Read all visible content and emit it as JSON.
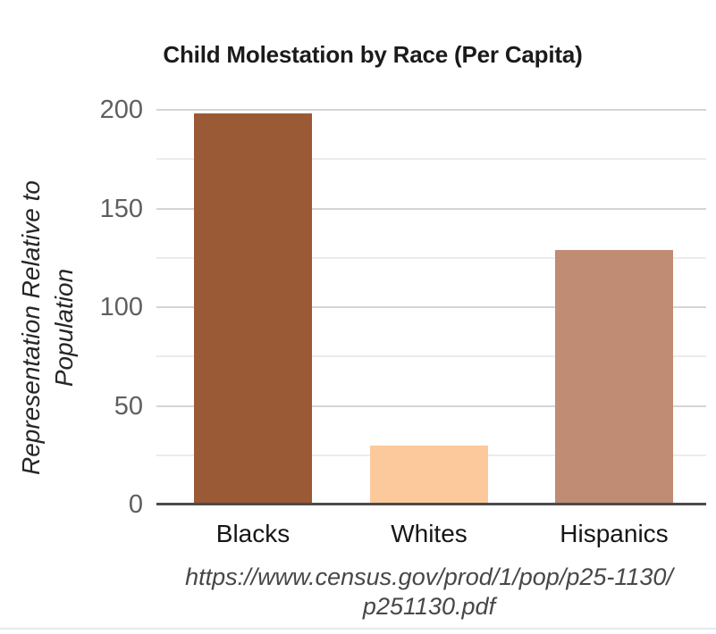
{
  "chart_data": {
    "type": "bar",
    "title": "Child Molestation by Race (Per Capita)",
    "categories": [
      "Blacks",
      "Whites",
      "Hispanics"
    ],
    "values": [
      198,
      30,
      129
    ],
    "bar_colors": [
      "#9a5a35",
      "#fcc99c",
      "#c08c73"
    ],
    "ylabel": "Representation Relative to Population",
    "ylabel_lines": [
      "Representation Relative to",
      "Population"
    ],
    "ylim": [
      0,
      200
    ],
    "yticks": [
      0,
      50,
      100,
      150,
      200
    ],
    "minor_gridlines": [
      25,
      75,
      125,
      175
    ],
    "grid": "horizontal",
    "legend": false,
    "source_lines": [
      "https://www.census.gov/prod/1/pop/p25-1130/",
      "p251130.pdf"
    ]
  },
  "colors": {
    "title_text": "#1b1b1b",
    "ylabel_text": "#262626",
    "ytick_text": "#5f5f5f",
    "xtick_text": "#161616",
    "source_text": "#474747",
    "major_grid": "#d5d5d5",
    "minor_grid": "#ebebeb",
    "axis_line": "#4b4b4b",
    "bottom_border": "#e6e9ed",
    "background": "#ffffff"
  }
}
